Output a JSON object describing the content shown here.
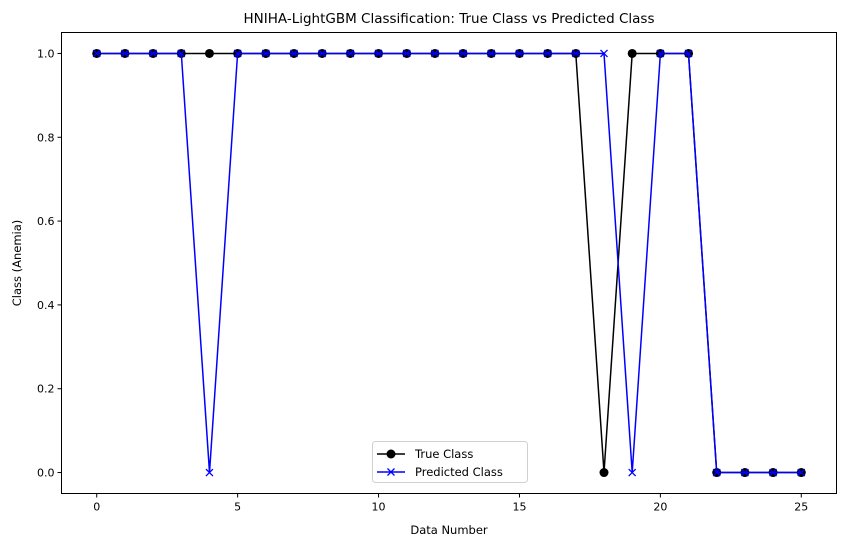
{
  "chart_data": {
    "type": "line",
    "title": "HNIHA-LightGBM Classification: True Class vs Predicted Class",
    "xlabel": "Data Number",
    "ylabel": "Class (Anemia)",
    "x": [
      0,
      1,
      2,
      3,
      4,
      5,
      6,
      7,
      8,
      9,
      10,
      11,
      12,
      13,
      14,
      15,
      16,
      17,
      18,
      19,
      20,
      21,
      22,
      23,
      24,
      25
    ],
    "series": [
      {
        "name": "True Class",
        "color": "#000000",
        "marker": "circle",
        "values": [
          1,
          1,
          1,
          1,
          1,
          1,
          1,
          1,
          1,
          1,
          1,
          1,
          1,
          1,
          1,
          1,
          1,
          1,
          0,
          1,
          1,
          1,
          0,
          0,
          0,
          0
        ]
      },
      {
        "name": "Predicted Class",
        "color": "#0000ff",
        "marker": "x",
        "values": [
          1,
          1,
          1,
          1,
          0,
          1,
          1,
          1,
          1,
          1,
          1,
          1,
          1,
          1,
          1,
          1,
          1,
          1,
          1,
          0,
          1,
          1,
          0,
          0,
          0,
          0
        ]
      }
    ],
    "xlim": [
      -1.25,
      26.25
    ],
    "ylim": [
      -0.05,
      1.05
    ],
    "xticks": [
      0,
      5,
      10,
      15,
      20,
      25
    ],
    "xtick_labels": [
      "0",
      "5",
      "10",
      "15",
      "20",
      "25"
    ],
    "yticks": [
      0.0,
      0.2,
      0.4,
      0.6,
      0.8,
      1.0
    ],
    "ytick_labels": [
      "0.0",
      "0.2",
      "0.4",
      "0.6",
      "0.8",
      "1.0"
    ],
    "grid": false,
    "legend_position": "lower center"
  }
}
